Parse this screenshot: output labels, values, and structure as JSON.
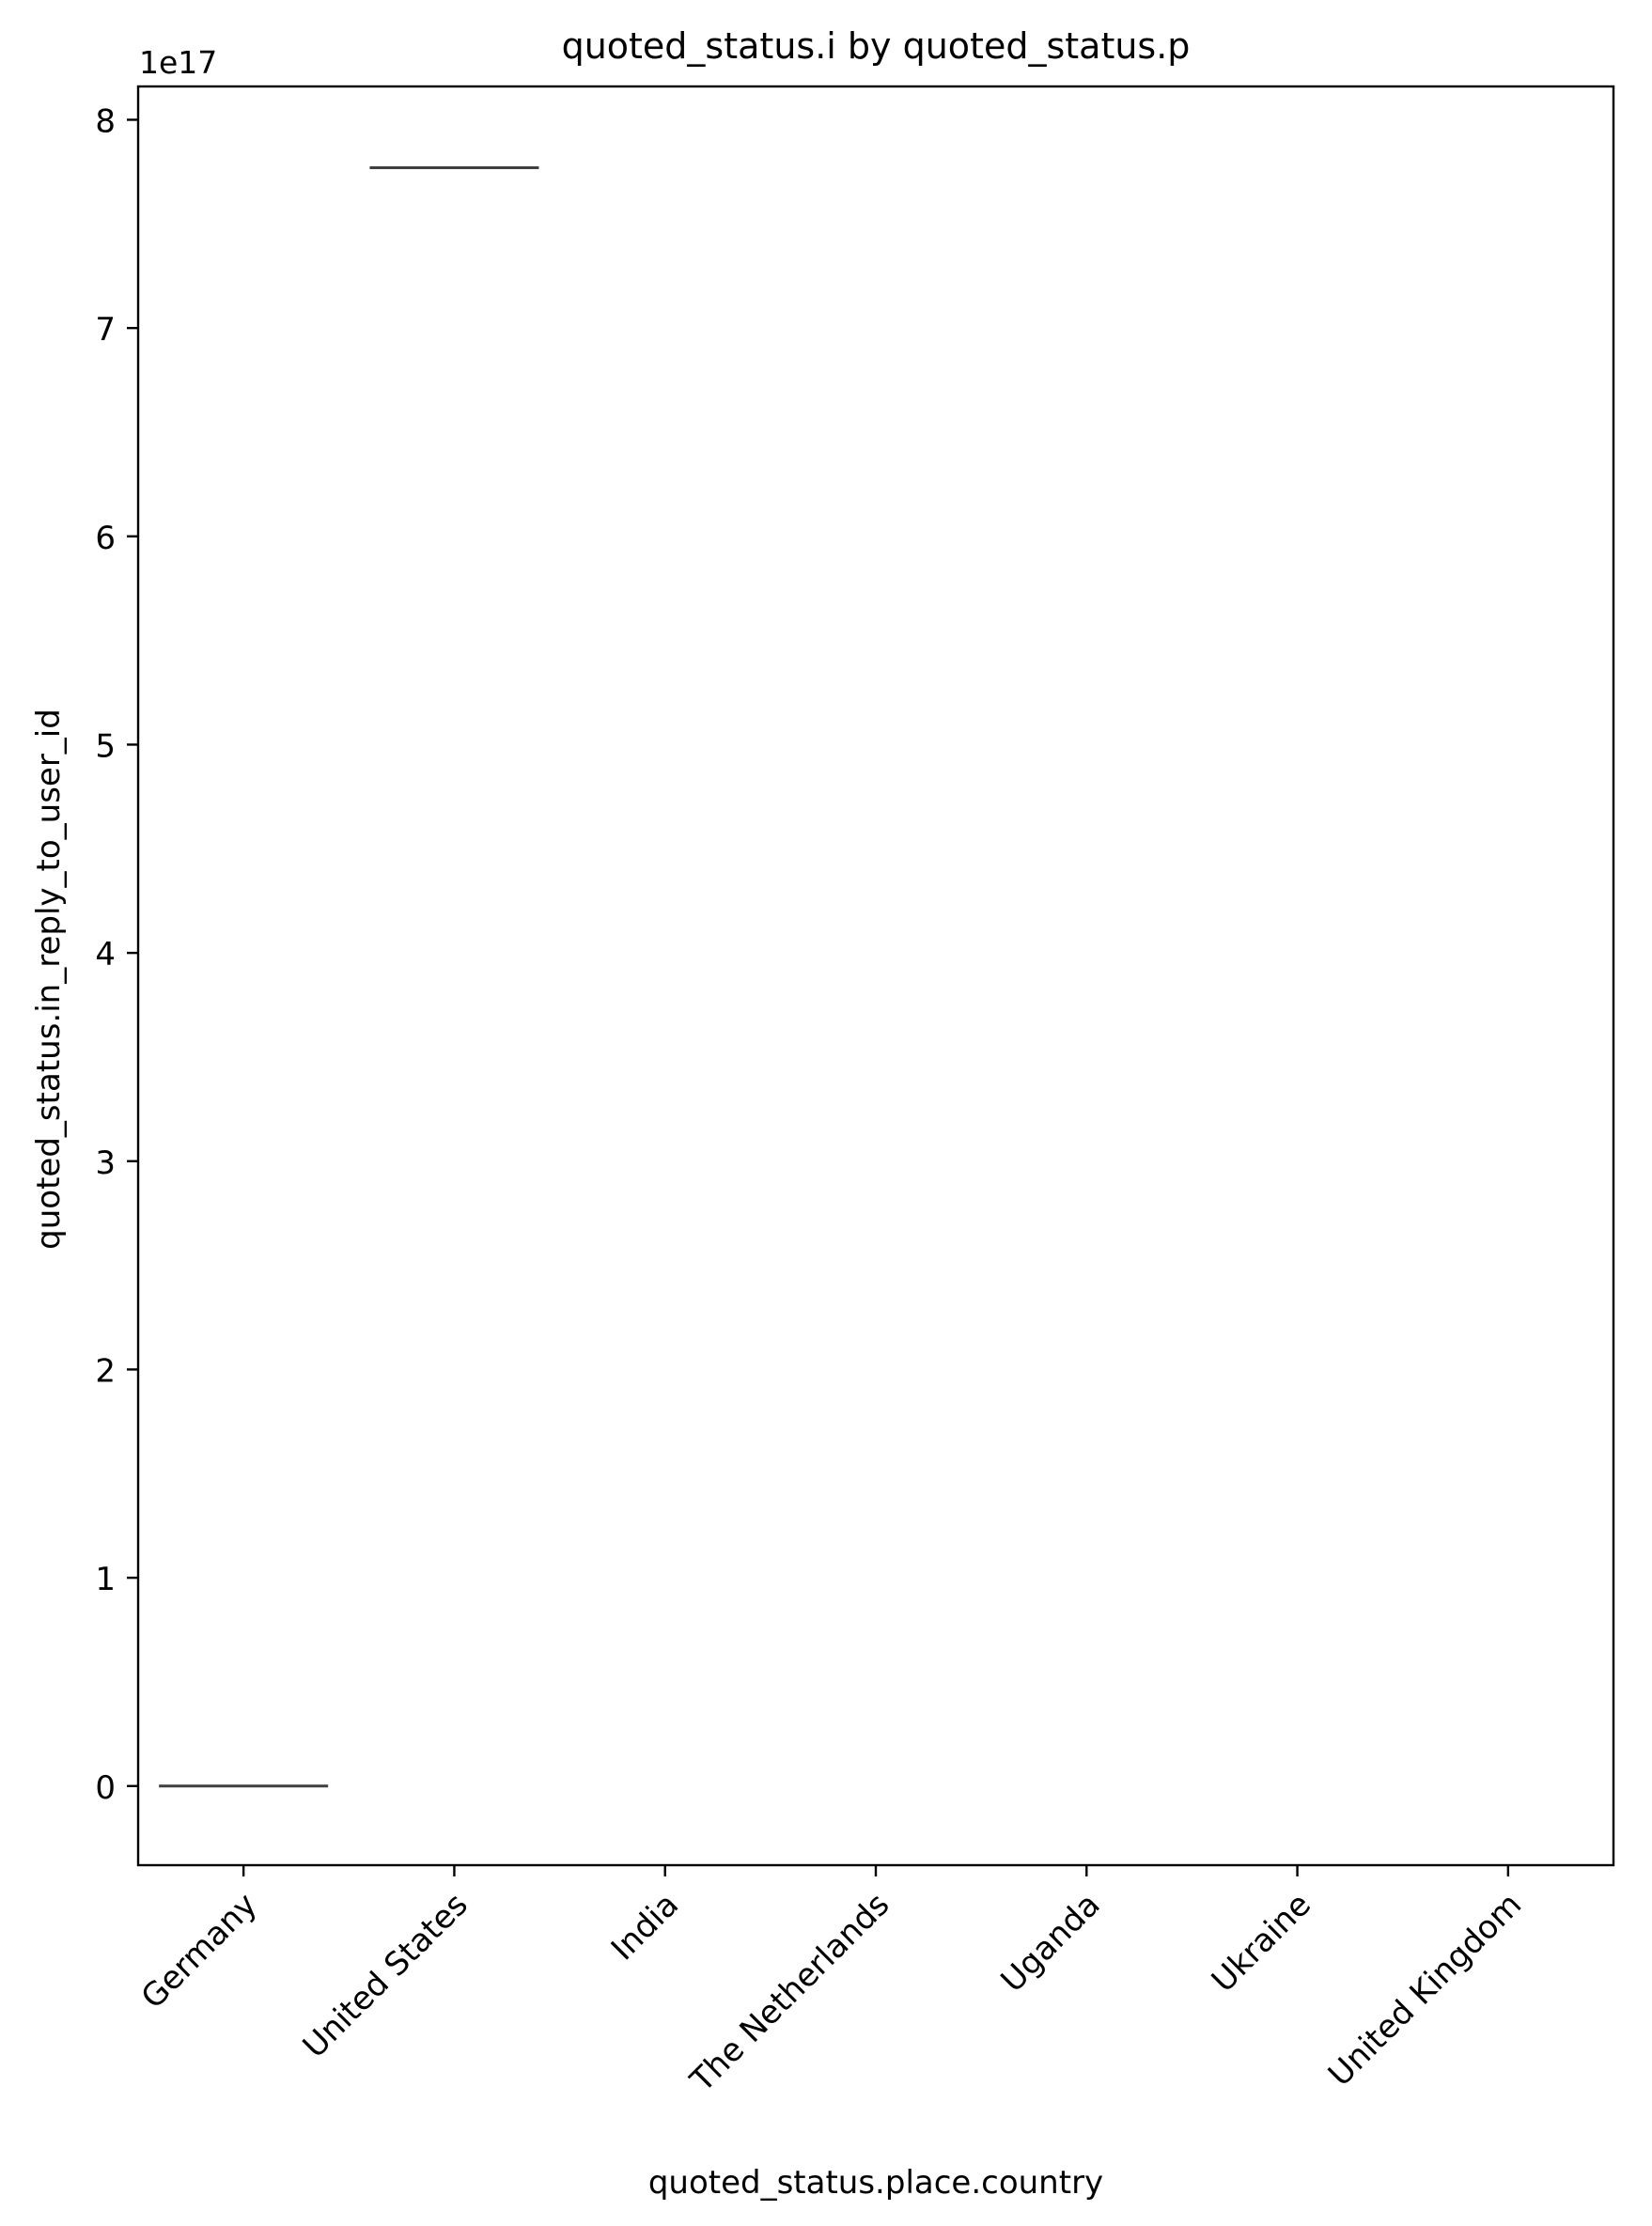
{
  "chart_data": {
    "type": "box",
    "title": "quoted_status.i by quoted_status.p",
    "xlabel": "quoted_status.place.country",
    "ylabel": "quoted_status.in_reply_to_user_id",
    "offset_label": "1e17",
    "categories": [
      "Germany",
      "United States",
      "India",
      "The Netherlands",
      "Uganda",
      "Ukraine",
      "United Kingdom"
    ],
    "ylim": [
      -0.38,
      8.16
    ],
    "yticks": [
      0,
      1,
      2,
      3,
      4,
      5,
      6,
      7,
      8
    ],
    "ytick_labels": [
      "0",
      "1",
      "2",
      "3",
      "4",
      "5",
      "6",
      "7",
      "8"
    ],
    "grid": false,
    "series": [
      {
        "values": [
          {
            "category": "Germany",
            "median": 0.0
          },
          {
            "category": "United States",
            "median": 7.77
          },
          {
            "category": "India",
            "median": null
          },
          {
            "category": "The Netherlands",
            "median": null
          },
          {
            "category": "Uganda",
            "median": null
          },
          {
            "category": "Ukraine",
            "median": null
          },
          {
            "category": "United Kingdom",
            "median": null
          }
        ]
      }
    ],
    "colors": {
      "box_line": "#3f3f3f",
      "axes": "#000000",
      "background": "#ffffff"
    }
  }
}
